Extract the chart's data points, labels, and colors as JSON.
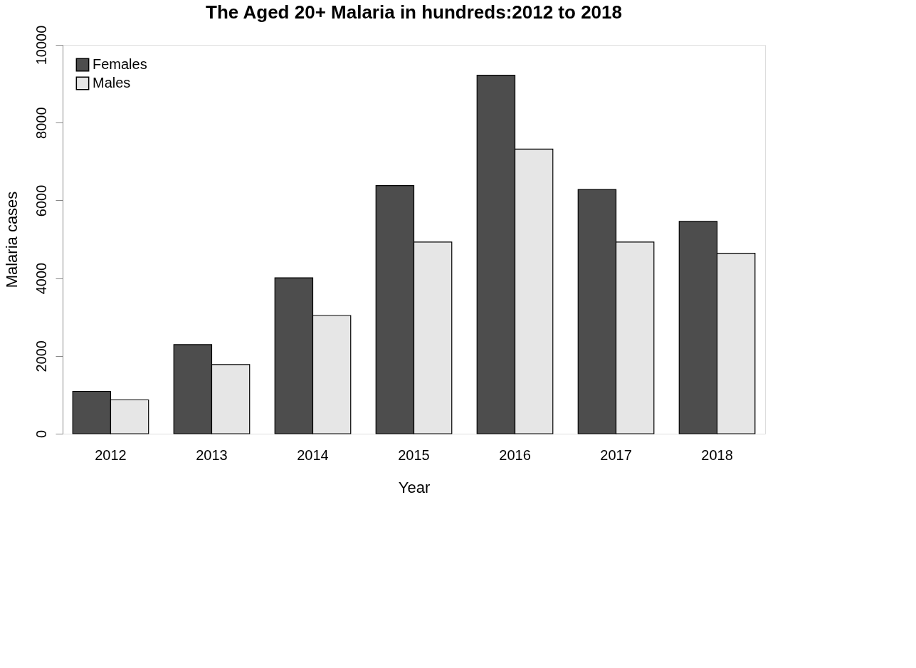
{
  "chart_data": {
    "type": "bar",
    "title": "The  Aged 20+ Malaria in hundreds:2012 to 2018",
    "xlabel": "Year",
    "ylabel": "Malaria cases",
    "categories": [
      "2012",
      "2013",
      "2014",
      "2015",
      "2016",
      "2017",
      "2018"
    ],
    "series": [
      {
        "name": "Females",
        "color": "#4d4d4d",
        "values": [
          1090,
          2290,
          4010,
          6380,
          9220,
          6280,
          5460
        ]
      },
      {
        "name": "Males",
        "color": "#e6e6e6",
        "values": [
          870,
          1780,
          3040,
          4930,
          7320,
          4930,
          4640
        ]
      }
    ],
    "ylim": [
      0,
      10000
    ],
    "yticks": [
      0,
      2000,
      4000,
      6000,
      8000,
      10000
    ],
    "grid": false,
    "legend": "top left"
  }
}
